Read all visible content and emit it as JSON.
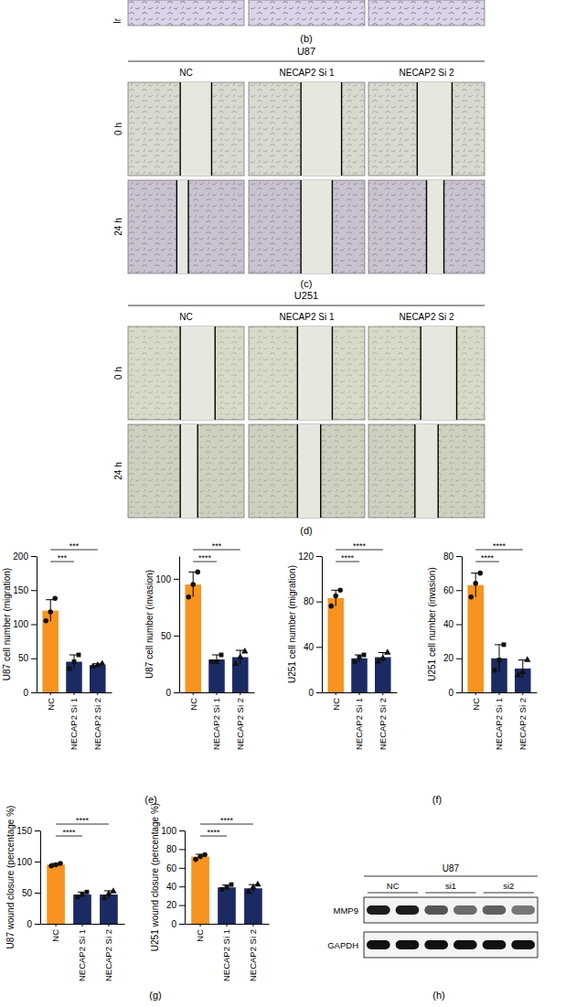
{
  "chart_data": [
    {
      "type": "bar",
      "y_label": "U87 cell number (migration)",
      "categories": [
        "NC",
        "NECAP2 Si 1",
        "NECAP2 Si 2"
      ],
      "values": [
        120,
        45,
        40
      ],
      "errors": [
        16,
        10,
        2
      ],
      "points": [
        [
          105,
          118,
          138
        ],
        [
          35,
          45,
          55
        ],
        [
          38,
          40,
          42
        ]
      ],
      "colors": [
        "#f7931e",
        "#1b2a63",
        "#1b2a63"
      ],
      "ylim": [
        0,
        200
      ],
      "yticks": [
        0,
        50,
        100,
        150,
        200
      ],
      "significance": [
        {
          "pair": [
            "NC",
            "NECAP2 Si 1"
          ],
          "label": "***"
        },
        {
          "pair": [
            "NC",
            "NECAP2 Si 2"
          ],
          "label": "***"
        }
      ]
    },
    {
      "type": "bar",
      "y_label": "U87 cell number (invasion)",
      "categories": [
        "NC",
        "NECAP2 Si 1",
        "NECAP2 Si 2"
      ],
      "values": [
        95,
        29,
        31
      ],
      "errors": [
        11,
        4,
        6
      ],
      "points": [
        [
          84,
          95,
          106
        ],
        [
          27,
          27,
          33
        ],
        [
          25,
          31,
          36
        ]
      ],
      "colors": [
        "#f7931e",
        "#1b2a63",
        "#1b2a63"
      ],
      "ylim": [
        0,
        120
      ],
      "yticks": [
        0,
        50,
        100
      ],
      "significance": [
        {
          "pair": [
            "NC",
            "NECAP2 Si 1"
          ],
          "label": "****"
        },
        {
          "pair": [
            "NC",
            "NECAP2 Si 2"
          ],
          "label": "***"
        }
      ]
    },
    {
      "type": "bar",
      "y_label": "U251 cell number (migration)",
      "categories": [
        "NC",
        "NECAP2 Si 1",
        "NECAP2 Si 2"
      ],
      "values": [
        83,
        30,
        31
      ],
      "errors": [
        7,
        3,
        4
      ],
      "points": [
        [
          76,
          85,
          90
        ],
        [
          27,
          31,
          33
        ],
        [
          27,
          30,
          35
        ]
      ],
      "colors": [
        "#f7931e",
        "#1b2a63",
        "#1b2a63"
      ],
      "ylim": [
        0,
        120
      ],
      "yticks": [
        0,
        40,
        80,
        120
      ],
      "significance": [
        {
          "pair": [
            "NC",
            "NECAP2 Si 1"
          ],
          "label": "****"
        },
        {
          "pair": [
            "NC",
            "NECAP2 Si 2"
          ],
          "label": "****"
        }
      ]
    },
    {
      "type": "bar",
      "y_label": "U251 cell number (invasion)",
      "categories": [
        "NC",
        "NECAP2 Si 1",
        "NECAP2 Si 2"
      ],
      "values": [
        63,
        20,
        14
      ],
      "errors": [
        7,
        8,
        5
      ],
      "points": [
        [
          56,
          64,
          70
        ],
        [
          13,
          19,
          28
        ],
        [
          10,
          12,
          19
        ]
      ],
      "colors": [
        "#f7931e",
        "#1b2a63",
        "#1b2a63"
      ],
      "ylim": [
        0,
        80
      ],
      "yticks": [
        0,
        20,
        40,
        60,
        80
      ],
      "significance": [
        {
          "pair": [
            "NC",
            "NECAP2 Si 1"
          ],
          "label": "****"
        },
        {
          "pair": [
            "NC",
            "NECAP2 Si 2"
          ],
          "label": "****"
        }
      ]
    },
    {
      "type": "bar",
      "y_label": "U87 wound closure (percentage %)",
      "categories": [
        "NC",
        "NECAP2 Si 1",
        "NECAP2 Si 2"
      ],
      "values": [
        95,
        47,
        47
      ],
      "errors": [
        2,
        4,
        6
      ],
      "points": [
        [
          93,
          95,
          97
        ],
        [
          43,
          47,
          51
        ],
        [
          41,
          48,
          52
        ]
      ],
      "colors": [
        "#f7931e",
        "#1b2a63",
        "#1b2a63"
      ],
      "ylim": [
        0,
        150
      ],
      "yticks": [
        0,
        50,
        100,
        150
      ],
      "significance": [
        {
          "pair": [
            "NC",
            "NECAP2 Si 1"
          ],
          "label": "****"
        },
        {
          "pair": [
            "NC",
            "NECAP2 Si 2"
          ],
          "label": "****"
        }
      ]
    },
    {
      "type": "bar",
      "y_label": "U251 wound closure (percentage %)",
      "categories": [
        "NC",
        "NECAP2 Si 1",
        "NECAP2 Si 2"
      ],
      "values": [
        72,
        39,
        38
      ],
      "errors": [
        2.5,
        2.5,
        4
      ],
      "points": [
        [
          69,
          72,
          74
        ],
        [
          37,
          39,
          42
        ],
        [
          34,
          39,
          42
        ]
      ],
      "colors": [
        "#f7931e",
        "#1b2a63",
        "#1b2a63"
      ],
      "ylim": [
        0,
        100
      ],
      "yticks": [
        0,
        20,
        40,
        60,
        80,
        100
      ],
      "significance": [
        {
          "pair": [
            "NC",
            "NECAP2 Si 1"
          ],
          "label": "****"
        },
        {
          "pair": [
            "NC",
            "NECAP2 Si 2"
          ],
          "label": "****"
        }
      ]
    }
  ],
  "figure": {
    "b": {
      "label": "(b)",
      "row_label": "Ir"
    },
    "c": {
      "label": "(c)",
      "title": "U87",
      "columns": [
        "NC",
        "NECAP2 Si 1",
        "NECAP2 Si 2"
      ],
      "rows": [
        "0 h",
        "24 h"
      ]
    },
    "d": {
      "label": "(d)",
      "title": "U251",
      "columns": [
        "NC",
        "NECAP2 Si 1",
        "NECAP2 Si 2"
      ],
      "rows": [
        "0 h",
        "24 h"
      ]
    },
    "e": {
      "label": "(e)"
    },
    "f": {
      "label": "(f)"
    },
    "g": {
      "label": "(g)"
    },
    "h": {
      "label": "(h)",
      "title": "U87",
      "lanes": [
        "NC",
        "si1",
        "si2"
      ],
      "proteins": [
        "MMP9",
        "GAPDH"
      ]
    }
  }
}
